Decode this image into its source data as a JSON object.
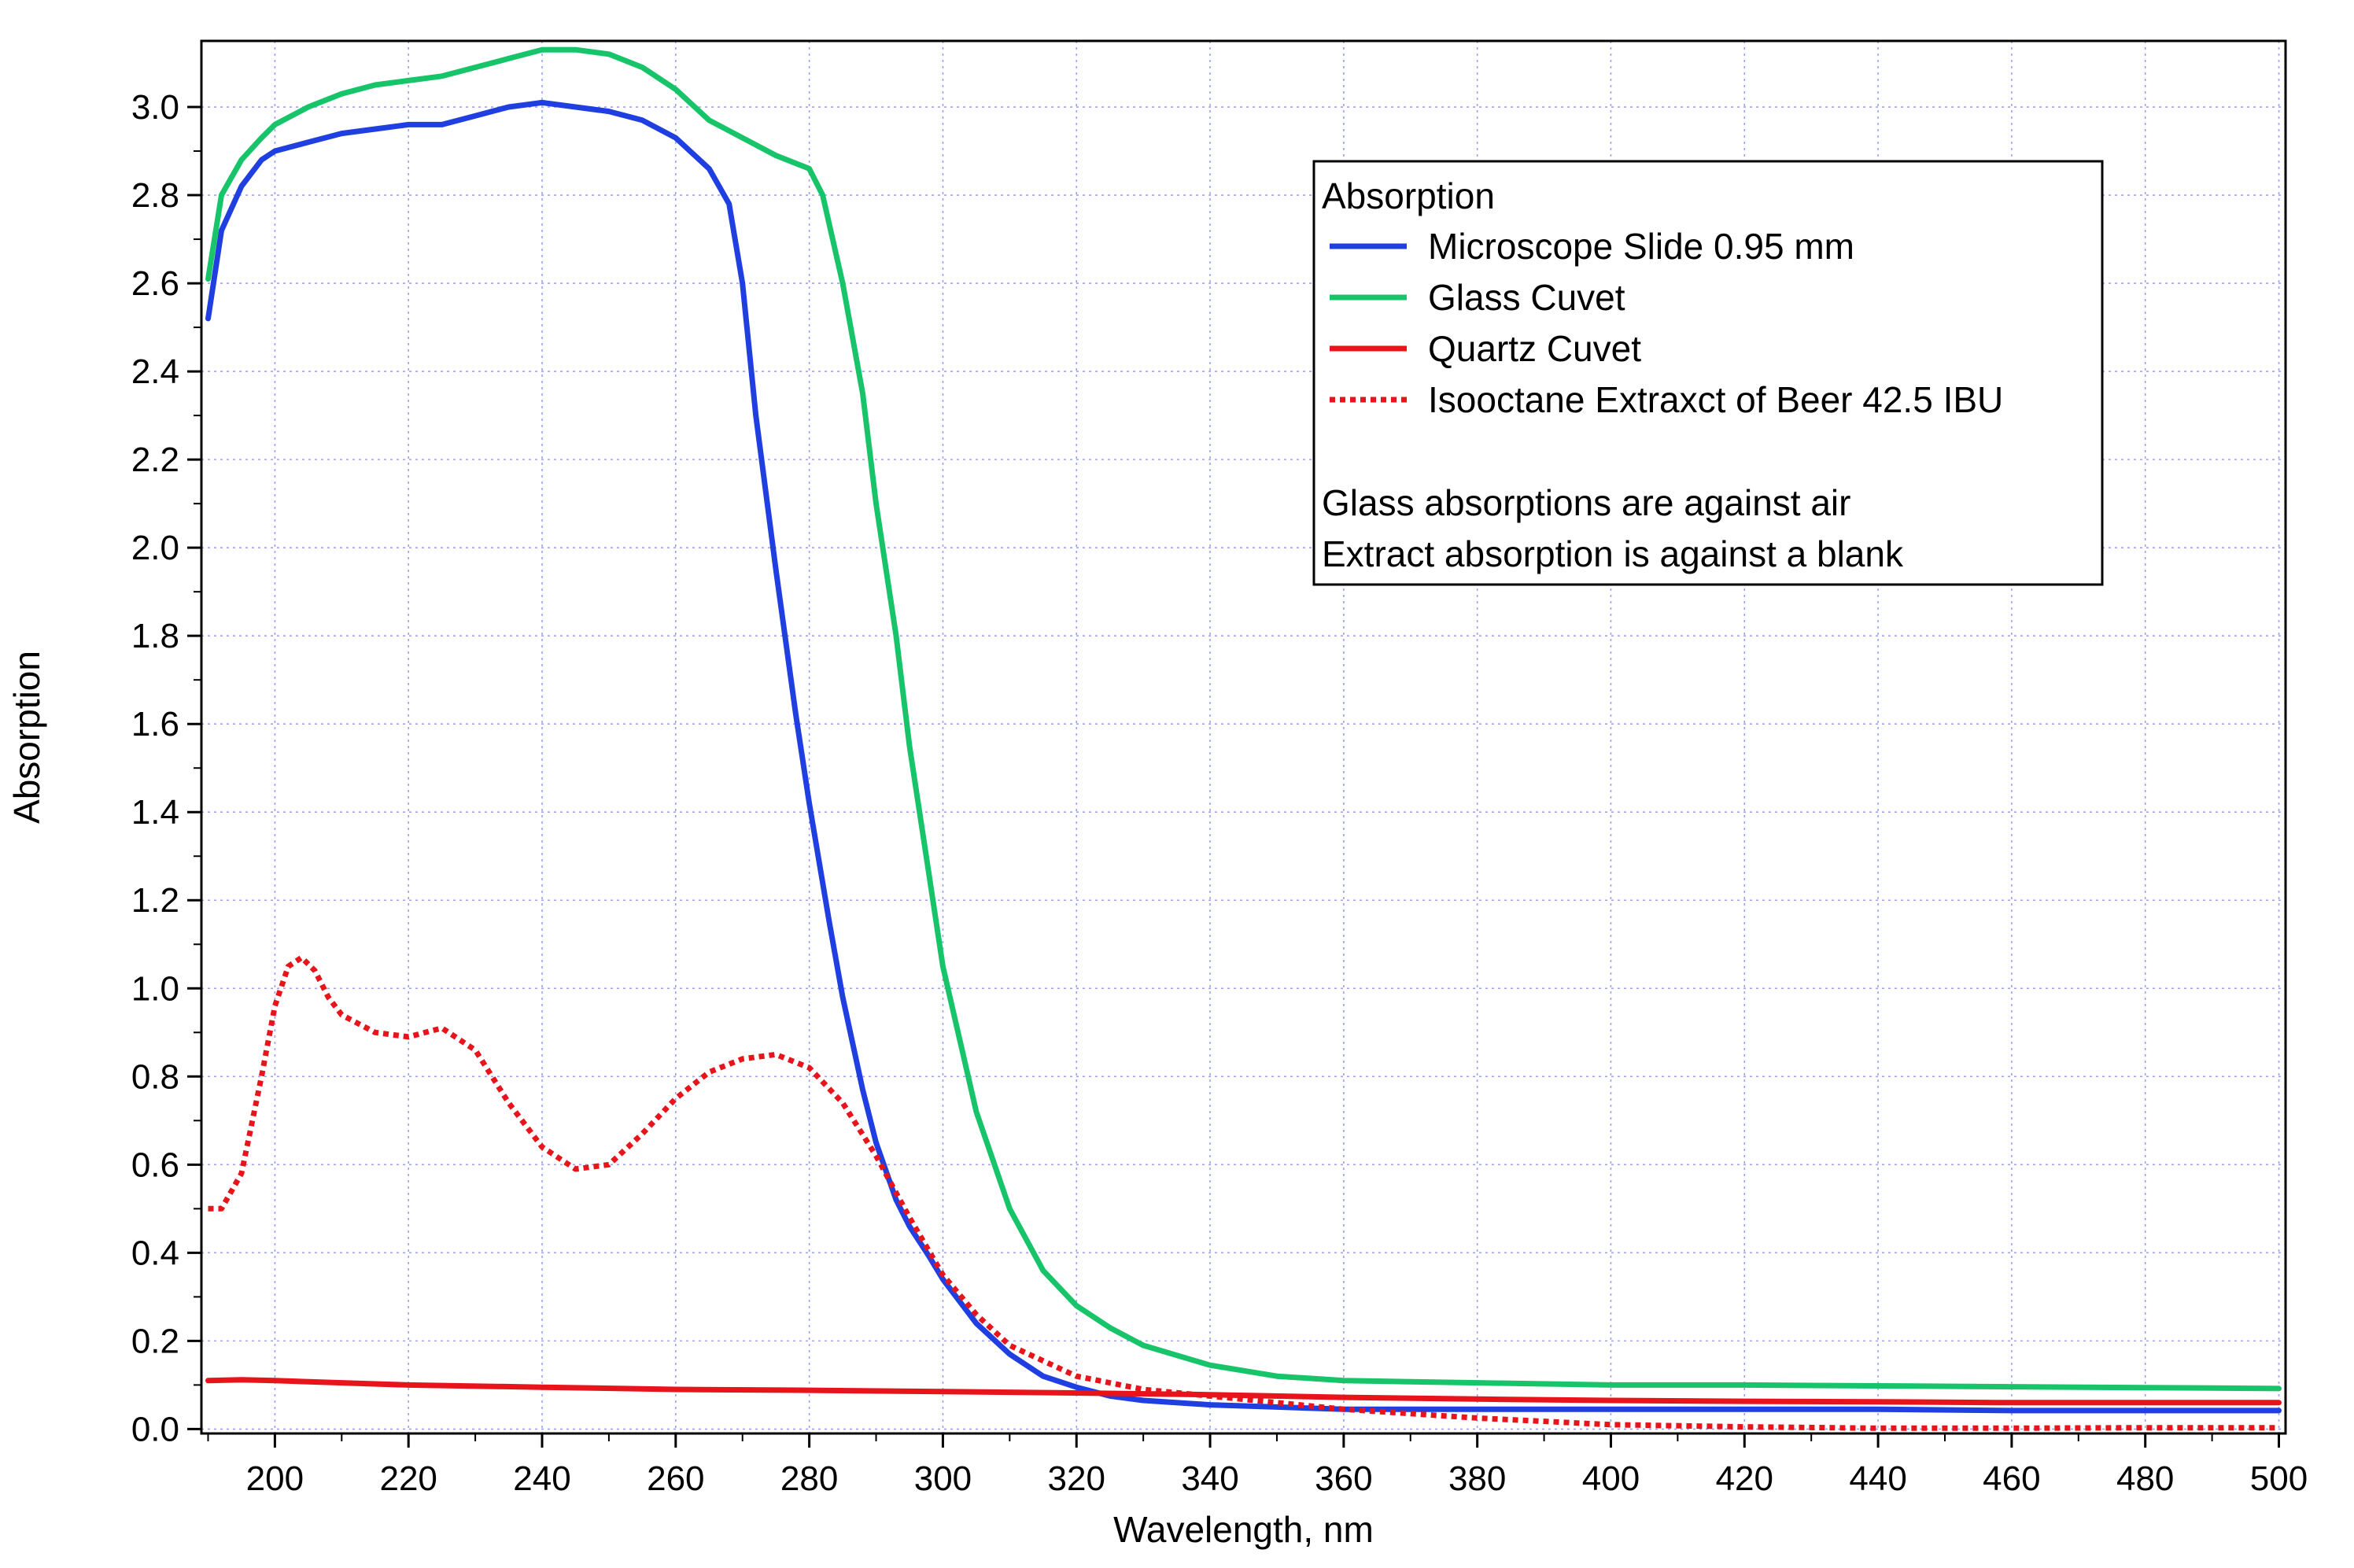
{
  "chart_data": {
    "type": "line",
    "title": "",
    "xlabel": "Wavelength, nm",
    "ylabel": "Absorption",
    "xlim": [
      189,
      501
    ],
    "ylim": [
      -0.01,
      3.15
    ],
    "x_ticks": [
      200,
      220,
      240,
      260,
      280,
      300,
      320,
      340,
      360,
      380,
      400,
      420,
      440,
      460,
      480,
      500
    ],
    "y_ticks": [
      0.0,
      0.2,
      0.4,
      0.6,
      0.8,
      1.0,
      1.2,
      1.4,
      1.6,
      1.8,
      2.0,
      2.2,
      2.4,
      2.6,
      2.8,
      3.0
    ],
    "x_tick_labels": [
      "200",
      "220",
      "240",
      "260",
      "280",
      "300",
      "320",
      "340",
      "360",
      "380",
      "400",
      "420",
      "440",
      "460",
      "480",
      "500"
    ],
    "y_tick_labels": [
      "0.0",
      "0.2",
      "0.4",
      "0.6",
      "0.8",
      "1.0",
      "1.2",
      "1.4",
      "1.6",
      "1.8",
      "2.0",
      "2.2",
      "2.4",
      "2.6",
      "2.8",
      "3.0"
    ],
    "grid": true,
    "legend": {
      "placement": "top-right",
      "title": "Absorption",
      "notes": [
        "Glass absorptions are against air",
        "Extract absorption is against a blank"
      ]
    },
    "series": [
      {
        "name": "Microscope Slide 0.95 mm",
        "color": "#1f3fe0",
        "dash": "solid",
        "x": [
          190,
          192,
          195,
          198,
          200,
          205,
          210,
          215,
          220,
          225,
          230,
          235,
          240,
          245,
          250,
          255,
          260,
          265,
          268,
          270,
          272,
          275,
          278,
          280,
          283,
          285,
          288,
          290,
          293,
          295,
          298,
          300,
          305,
          310,
          315,
          320,
          325,
          330,
          340,
          350,
          360,
          380,
          400,
          420,
          440,
          460,
          480,
          500
        ],
        "y": [
          2.52,
          2.72,
          2.82,
          2.88,
          2.9,
          2.92,
          2.94,
          2.95,
          2.96,
          2.96,
          2.98,
          3.0,
          3.01,
          3.0,
          2.99,
          2.97,
          2.93,
          2.86,
          2.78,
          2.6,
          2.3,
          1.95,
          1.62,
          1.42,
          1.15,
          0.98,
          0.77,
          0.65,
          0.52,
          0.46,
          0.39,
          0.34,
          0.24,
          0.17,
          0.12,
          0.095,
          0.075,
          0.065,
          0.055,
          0.05,
          0.045,
          0.045,
          0.045,
          0.045,
          0.045,
          0.042,
          0.042,
          0.042
        ]
      },
      {
        "name": "Glass Cuvet",
        "color": "#18c46a",
        "dash": "solid",
        "x": [
          190,
          192,
          195,
          198,
          200,
          205,
          210,
          215,
          220,
          225,
          230,
          235,
          240,
          245,
          250,
          255,
          260,
          265,
          270,
          275,
          280,
          282,
          285,
          288,
          290,
          293,
          295,
          298,
          300,
          305,
          310,
          315,
          320,
          325,
          330,
          340,
          350,
          360,
          380,
          400,
          420,
          440,
          460,
          480,
          500
        ],
        "y": [
          2.61,
          2.8,
          2.88,
          2.93,
          2.96,
          3.0,
          3.03,
          3.05,
          3.06,
          3.07,
          3.09,
          3.11,
          3.13,
          3.13,
          3.12,
          3.09,
          3.04,
          2.97,
          2.93,
          2.89,
          2.86,
          2.8,
          2.6,
          2.35,
          2.1,
          1.8,
          1.55,
          1.25,
          1.05,
          0.72,
          0.5,
          0.36,
          0.28,
          0.23,
          0.19,
          0.145,
          0.12,
          0.11,
          0.105,
          0.1,
          0.1,
          0.098,
          0.096,
          0.094,
          0.092
        ]
      },
      {
        "name": "Quartz Cuvet",
        "color": "#e8141b",
        "dash": "solid",
        "x": [
          190,
          195,
          200,
          210,
          220,
          240,
          260,
          280,
          300,
          320,
          340,
          360,
          380,
          400,
          420,
          440,
          460,
          480,
          500
        ],
        "y": [
          0.11,
          0.112,
          0.11,
          0.105,
          0.1,
          0.095,
          0.09,
          0.088,
          0.085,
          0.082,
          0.078,
          0.072,
          0.068,
          0.065,
          0.063,
          0.062,
          0.06,
          0.06,
          0.06
        ]
      },
      {
        "name": "Isooctane Extraxct of Beer 42.5 IBU",
        "color": "#e8141b",
        "dash": "dotted",
        "x": [
          190,
          192,
          195,
          198,
          200,
          202,
          204,
          206,
          208,
          210,
          215,
          220,
          225,
          230,
          235,
          240,
          245,
          250,
          255,
          260,
          265,
          270,
          275,
          280,
          285,
          290,
          295,
          300,
          305,
          310,
          320,
          330,
          340,
          350,
          360,
          380,
          400,
          420,
          440,
          460,
          480,
          500
        ],
        "y": [
          0.5,
          0.5,
          0.58,
          0.8,
          0.96,
          1.05,
          1.07,
          1.04,
          0.98,
          0.94,
          0.9,
          0.89,
          0.91,
          0.86,
          0.74,
          0.64,
          0.59,
          0.6,
          0.67,
          0.75,
          0.81,
          0.84,
          0.85,
          0.82,
          0.74,
          0.62,
          0.48,
          0.35,
          0.26,
          0.19,
          0.12,
          0.09,
          0.075,
          0.06,
          0.045,
          0.025,
          0.01,
          0.005,
          0.002,
          0.002,
          0.003,
          0.003
        ]
      }
    ]
  }
}
